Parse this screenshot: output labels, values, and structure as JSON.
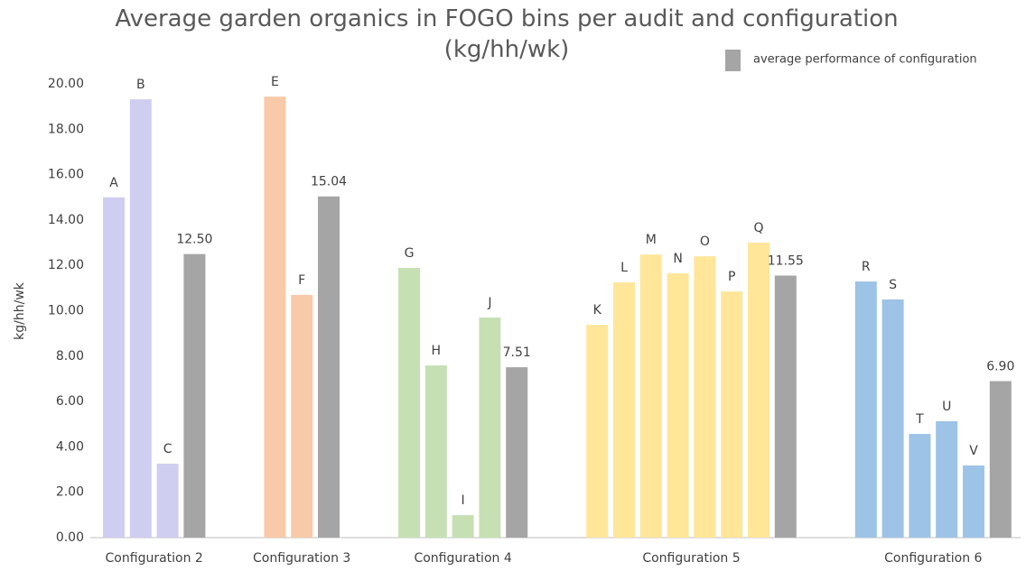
{
  "chart_data": {
    "type": "grouped-bar",
    "title": "Average garden organics in FOGO bins per audit and configuration (kg/hh/wk)",
    "y_label": "kg/hh/wk",
    "ylim": [
      0,
      20
    ],
    "yticks": [
      {
        "value": 0,
        "label": "0.00"
      },
      {
        "value": 2,
        "label": "2.00"
      },
      {
        "value": 4,
        "label": "4.00"
      },
      {
        "value": 6,
        "label": "6.00"
      },
      {
        "value": 8,
        "label": "8.00"
      },
      {
        "value": 10,
        "label": "10.00"
      },
      {
        "value": 12,
        "label": "12.00"
      },
      {
        "value": 14,
        "label": "14.00"
      },
      {
        "value": 16,
        "label": "16.00"
      },
      {
        "value": 18,
        "label": "18.00"
      },
      {
        "value": 20,
        "label": "20.00"
      }
    ],
    "grid": false,
    "legend": {
      "name": "average performance of configuration",
      "color": "#a5a5a5",
      "position": "top-right"
    },
    "groups": [
      {
        "name": "Configuration 2",
        "color": "#cfcdf0",
        "labels": [
          "A",
          "B",
          "C"
        ],
        "values": [
          15.0,
          19.32,
          3.26
        ],
        "average": 12.5,
        "average_label": "12.50"
      },
      {
        "name": "Configuration 3",
        "color": "#f8caa9",
        "labels": [
          "E",
          "F"
        ],
        "values": [
          19.44,
          10.7
        ],
        "average": 15.04,
        "average_label": "15.04"
      },
      {
        "name": "Configuration 4",
        "color": "#c6e0b4",
        "labels": [
          "G",
          "H",
          "I",
          "J"
        ],
        "values": [
          11.89,
          7.59,
          0.99,
          9.7
        ],
        "average": 7.51,
        "average_label": "7.51"
      },
      {
        "name": "Configuration 5",
        "color": "#ffe699",
        "labels": [
          "K",
          "L",
          "M",
          "N",
          "O",
          "P",
          "Q"
        ],
        "values": [
          9.38,
          11.25,
          12.48,
          11.65,
          12.4,
          10.85,
          13.0
        ],
        "average": 11.55,
        "average_label": "11.55"
      },
      {
        "name": "Configuration 6",
        "color": "#9dc3e6",
        "labels": [
          "R",
          "S",
          "T",
          "U",
          "V"
        ],
        "values": [
          11.29,
          10.5,
          4.57,
          5.13,
          3.18
        ],
        "average": 6.9,
        "average_label": "6.90"
      }
    ]
  }
}
